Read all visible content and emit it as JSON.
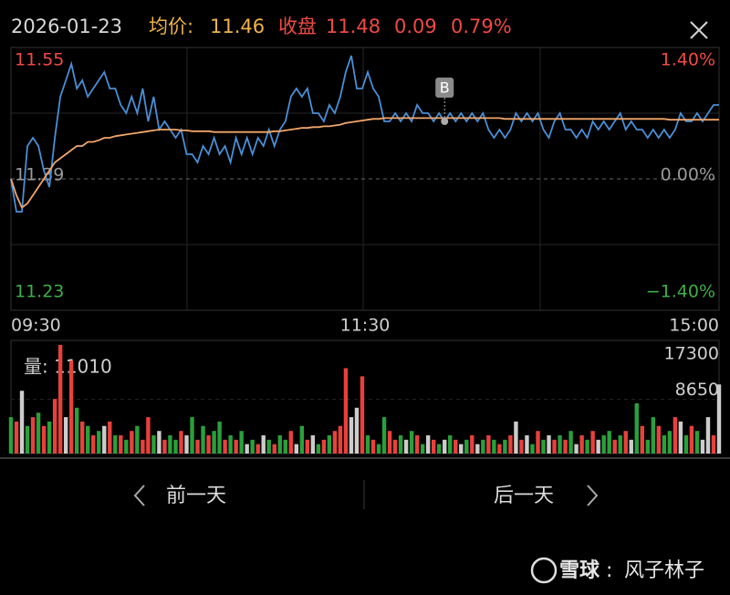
{
  "header": {
    "date": "2026-01-23",
    "avg_label": "均价:",
    "avg": "11.46",
    "close_label": "收盘",
    "close": "11.48",
    "change": "0.09",
    "change_pct": "0.79%"
  },
  "chart_data": [
    {
      "type": "line",
      "ylim": [
        11.23,
        11.55
      ],
      "yticks": [
        11.55,
        11.39,
        11.23
      ],
      "y2lim": [
        -1.4,
        1.4
      ],
      "y2ticks": [
        {
          "value": 1.4,
          "label": "1.40%"
        },
        {
          "value": 0,
          "label": "0.00%"
        },
        {
          "value": -1.4,
          "label": "−1.40%"
        }
      ],
      "tick_colors": [
        "#f04a44",
        "#9a9a9a",
        "#3fae49"
      ],
      "x_labels": [
        "09:30",
        "11:30",
        "15:00"
      ],
      "annotations": [
        {
          "text": "B"
        }
      ],
      "series": [
        {
          "color": "#4a8fd6",
          "values": [
            11.39,
            11.35,
            11.35,
            11.43,
            11.44,
            11.43,
            11.4,
            11.38,
            11.44,
            11.49,
            11.51,
            11.53,
            11.5,
            11.51,
            11.49,
            11.5,
            11.51,
            11.52,
            11.5,
            11.5,
            11.48,
            11.47,
            11.49,
            11.47,
            11.5,
            11.46,
            11.49,
            11.45,
            11.46,
            11.45,
            11.44,
            11.45,
            11.42,
            11.42,
            11.41,
            11.43,
            11.42,
            11.44,
            11.42,
            11.43,
            11.41,
            11.44,
            11.42,
            11.44,
            11.42,
            11.44,
            11.43,
            11.45,
            11.43,
            11.45,
            11.46,
            11.49,
            11.5,
            11.49,
            11.5,
            11.47,
            11.47,
            11.46,
            11.48,
            11.47,
            11.49,
            11.52,
            11.54,
            11.5,
            11.5,
            11.52,
            11.5,
            11.49,
            11.46,
            11.46,
            11.47,
            11.46,
            11.47,
            11.46,
            11.48,
            11.47,
            11.47,
            11.46,
            11.47,
            11.46,
            11.47,
            11.46,
            11.47,
            11.46,
            11.47,
            11.46,
            11.47,
            11.45,
            11.44,
            11.45,
            11.44,
            11.45,
            11.47,
            11.46,
            11.47,
            11.46,
            11.47,
            11.45,
            11.44,
            11.46,
            11.47,
            11.45,
            11.45,
            11.44,
            11.45,
            11.44,
            11.46,
            11.45,
            11.46,
            11.45,
            11.46,
            11.47,
            11.45,
            11.46,
            11.45,
            11.45,
            11.44,
            11.45,
            11.44,
            11.45,
            11.44,
            11.45,
            11.47,
            11.46,
            11.46,
            11.47,
            11.46,
            11.47,
            11.48,
            11.48
          ]
        },
        {
          "color": "#f2a66a",
          "values": [
            11.39,
            11.37,
            11.355,
            11.36,
            11.37,
            11.38,
            11.39,
            11.4,
            11.41,
            11.415,
            11.42,
            11.425,
            11.43,
            11.43,
            11.435,
            11.435,
            11.437,
            11.44,
            11.44,
            11.442,
            11.443,
            11.444,
            11.445,
            11.446,
            11.447,
            11.448,
            11.449,
            11.45,
            11.45,
            11.45,
            11.45,
            11.449,
            11.449,
            11.448,
            11.448,
            11.448,
            11.448,
            11.447,
            11.447,
            11.447,
            11.447,
            11.447,
            11.447,
            11.447,
            11.447,
            11.447,
            11.447,
            11.447,
            11.448,
            11.448,
            11.449,
            11.45,
            11.451,
            11.452,
            11.452,
            11.453,
            11.453,
            11.454,
            11.454,
            11.455,
            11.456,
            11.458,
            11.459,
            11.46,
            11.461,
            11.462,
            11.463,
            11.463,
            11.464,
            11.464,
            11.464,
            11.464,
            11.464,
            11.464,
            11.464,
            11.464,
            11.464,
            11.464,
            11.464,
            11.464,
            11.464,
            11.464,
            11.464,
            11.464,
            11.464,
            11.464,
            11.464,
            11.464,
            11.464,
            11.464,
            11.463,
            11.463,
            11.463,
            11.463,
            11.463,
            11.463,
            11.463,
            11.463,
            11.463,
            11.463,
            11.463,
            11.463,
            11.463,
            11.463,
            11.463,
            11.463,
            11.463,
            11.463,
            11.463,
            11.463,
            11.463,
            11.463,
            11.463,
            11.463,
            11.463,
            11.463,
            11.463,
            11.463,
            11.463,
            11.463,
            11.462,
            11.462,
            11.462,
            11.462,
            11.462,
            11.462,
            11.462,
            11.462,
            11.462,
            11.462
          ]
        }
      ]
    },
    {
      "type": "bar",
      "label": "量: 11010",
      "ylim": [
        0,
        17300
      ],
      "yticks": [
        8650,
        17300
      ],
      "values": [
        5800,
        5100,
        10000,
        4400,
        5800,
        6500,
        4400,
        5100,
        8700,
        17300,
        5800,
        14800,
        7300,
        5100,
        4400,
        2900,
        3600,
        4400,
        5100,
        2900,
        2900,
        2200,
        3600,
        4400,
        2200,
        5800,
        2900,
        3600,
        2200,
        2900,
        2200,
        3600,
        2900,
        5800,
        2200,
        4400,
        2900,
        3600,
        5100,
        2200,
        2900,
        2200,
        3600,
        1500,
        2200,
        1500,
        2900,
        2200,
        1500,
        2900,
        2200,
        3600,
        1500,
        4400,
        2200,
        2900,
        1500,
        2200,
        2900,
        3600,
        4400,
        13600,
        5800,
        7300,
        12300,
        2900,
        2200,
        1500,
        5800,
        3600,
        2200,
        2900,
        2200,
        3600,
        2900,
        1500,
        2900,
        2200,
        1500,
        2200,
        2900,
        2200,
        1500,
        2200,
        2900,
        1500,
        2200,
        2900,
        2200,
        1500,
        2200,
        2900,
        5100,
        2200,
        2900,
        1500,
        3600,
        2200,
        2900,
        2200,
        2900,
        2200,
        3600,
        1500,
        2900,
        2200,
        3600,
        2200,
        2900,
        3600,
        2200,
        2900,
        3600,
        2200,
        8000,
        4400,
        2200,
        5800,
        4400,
        2900,
        3600,
        5800,
        5100,
        2900,
        4400,
        3600,
        2200,
        5800,
        2900,
        11010
      ],
      "colors": [
        "#2aa03a",
        "#e8413c",
        "#cccccc",
        "#2aa03a",
        "#e8413c",
        "#2aa03a",
        "#e8413c",
        "#2aa03a",
        "#e8413c",
        "#e8413c",
        "#cccccc",
        "#e8413c",
        "#2aa03a",
        "#e8413c",
        "#2aa03a",
        "#e8413c",
        "#2aa03a",
        "#cccccc",
        "#e8413c",
        "#2aa03a",
        "#e8413c",
        "#2aa03a",
        "#e8413c",
        "#2aa03a",
        "#e8413c",
        "#e8413c",
        "#2aa03a",
        "#cccccc",
        "#e8413c",
        "#2aa03a",
        "#2aa03a",
        "#e8413c",
        "#cccccc",
        "#2aa03a",
        "#e8413c",
        "#2aa03a",
        "#e8413c",
        "#2aa03a",
        "#2aa03a",
        "#e8413c",
        "#2aa03a",
        "#e8413c",
        "#2aa03a",
        "#cccccc",
        "#2aa03a",
        "#e8413c",
        "#cccccc",
        "#2aa03a",
        "#e8413c",
        "#2aa03a",
        "#2aa03a",
        "#e8413c",
        "#cccccc",
        "#2aa03a",
        "#e8413c",
        "#cccccc",
        "#2aa03a",
        "#e8413c",
        "#2aa03a",
        "#e8413c",
        "#e8413c",
        "#e8413c",
        "#cccccc",
        "#cccccc",
        "#e8413c",
        "#2aa03a",
        "#e8413c",
        "#2aa03a",
        "#2aa03a",
        "#e8413c",
        "#e8413c",
        "#2aa03a",
        "#cccccc",
        "#2aa03a",
        "#e8413c",
        "#2aa03a",
        "#cccccc",
        "#e8413c",
        "#2aa03a",
        "#cccccc",
        "#2aa03a",
        "#e8413c",
        "#cccccc",
        "#2aa03a",
        "#e8413c",
        "#cccccc",
        "#2aa03a",
        "#e8413c",
        "#2aa03a",
        "#e8413c",
        "#2aa03a",
        "#e8413c",
        "#cccccc",
        "#e8413c",
        "#cccccc",
        "#2aa03a",
        "#e8413c",
        "#2aa03a",
        "#cccccc",
        "#e8413c",
        "#2aa03a",
        "#e8413c",
        "#2aa03a",
        "#cccccc",
        "#e8413c",
        "#2aa03a",
        "#e8413c",
        "#cccccc",
        "#2aa03a",
        "#2aa03a",
        "#e8413c",
        "#2aa03a",
        "#e8413c",
        "#cccccc",
        "#2aa03a",
        "#e8413c",
        "#2aa03a",
        "#2aa03a",
        "#e8413c",
        "#2aa03a",
        "#2aa03a",
        "#e8413c",
        "#cccccc",
        "#2aa03a",
        "#e8413c",
        "#2aa03a",
        "#cccccc",
        "#cccccc",
        "#e8413c",
        "#cccccc"
      ]
    }
  ],
  "nav": {
    "prev": "前一天",
    "next": "后一天"
  },
  "watermark": {
    "brand": "雪球",
    "separator": ":",
    "author": "风子林子"
  }
}
